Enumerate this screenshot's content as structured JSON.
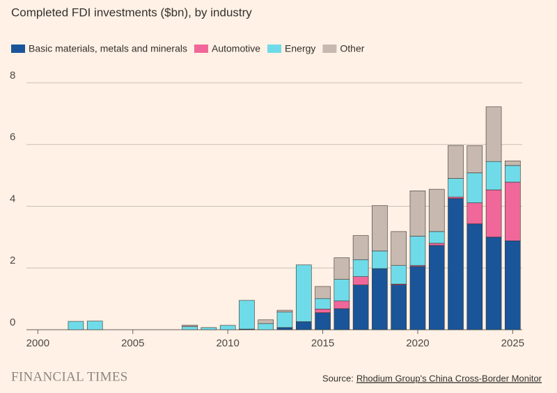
{
  "chart_data": {
    "type": "bar",
    "title": "Completed FDI investments ($bn), by industry",
    "x": [
      2000,
      2001,
      2002,
      2003,
      2004,
      2005,
      2006,
      2007,
      2008,
      2009,
      2010,
      2011,
      2012,
      2013,
      2014,
      2015,
      2016,
      2017,
      2018,
      2019,
      2020,
      2021,
      2022,
      2023,
      2024,
      2025
    ],
    "series": [
      {
        "name": "Basic materials, metals and minerals",
        "color": "#1a5599",
        "values": [
          0,
          0,
          0,
          0,
          0,
          0,
          0,
          0,
          0,
          0,
          0,
          0.02,
          0,
          0.07,
          0.26,
          0.55,
          0.68,
          1.45,
          1.98,
          1.45,
          2.05,
          2.73,
          4.25,
          3.43,
          3.0,
          2.88
        ]
      },
      {
        "name": "Automotive",
        "color": "#f0679a",
        "values": [
          0,
          0,
          0,
          0,
          0,
          0,
          0,
          0,
          0,
          0,
          0,
          0,
          0,
          0,
          0,
          0.12,
          0.25,
          0.27,
          0,
          0.03,
          0.03,
          0.07,
          0.05,
          0.68,
          1.53,
          1.9
        ]
      },
      {
        "name": "Energy",
        "color": "#6fdbe8",
        "values": [
          0,
          0,
          0.27,
          0.28,
          0,
          0,
          0,
          0,
          0.1,
          0.07,
          0.14,
          0.93,
          0.2,
          0.5,
          1.84,
          0.34,
          0.7,
          0.55,
          0.57,
          0.6,
          0.95,
          0.38,
          0.6,
          0.97,
          0.92,
          0.54
        ]
      },
      {
        "name": "Other",
        "color": "#c8b9b0",
        "values": [
          0,
          0,
          0,
          0,
          0,
          0,
          0,
          0,
          0.05,
          0,
          0,
          0,
          0.12,
          0.06,
          0,
          0.39,
          0.7,
          0.78,
          1.47,
          1.1,
          1.47,
          1.37,
          1.07,
          0.88,
          1.77,
          0.15
        ]
      }
    ],
    "xlim": [
      1999.4,
      2025.5
    ],
    "xticks": [
      2000,
      2005,
      2010,
      2015,
      2020,
      2025
    ],
    "ylim": [
      0,
      8
    ],
    "yticks": [
      0,
      2,
      4,
      6,
      8
    ],
    "grid": true,
    "legend": "top",
    "publisher": "FINANCIAL TIMES",
    "source_prefix": "Source:",
    "source_link": "Rhodium Group's China Cross-Border Monitor"
  }
}
